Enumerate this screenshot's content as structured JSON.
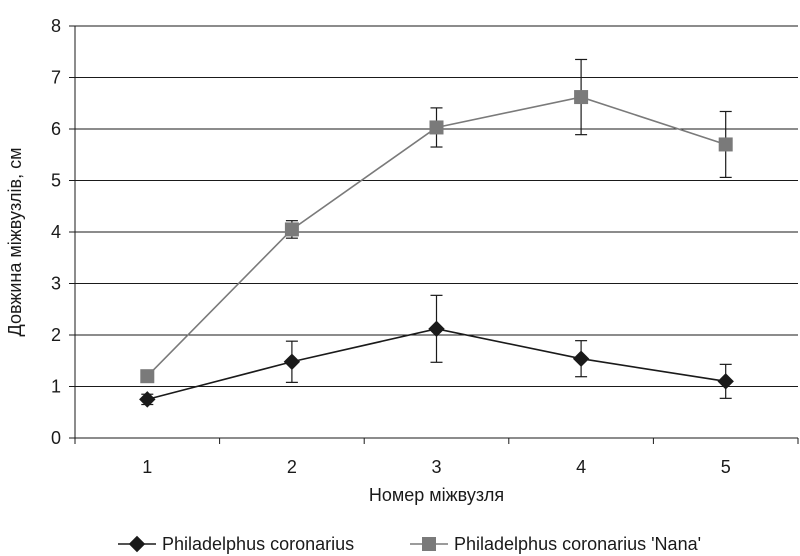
{
  "chart_data": {
    "type": "line",
    "title": "",
    "xlabel": "Номер міжвузля",
    "ylabel": "Довжина міжвузлів, см",
    "categories": [
      "1",
      "2",
      "3",
      "4",
      "5"
    ],
    "ylim": [
      0,
      8
    ],
    "yticks": [
      0,
      1,
      2,
      3,
      4,
      5,
      6,
      7,
      8
    ],
    "grid": "horizontal",
    "legend_position": "bottom",
    "series": [
      {
        "name": "Philadelphus coronarius",
        "marker": "diamond",
        "color": "#1a1a1a",
        "values": [
          0.75,
          1.48,
          2.12,
          1.54,
          1.1
        ],
        "error": [
          0.1,
          0.4,
          0.65,
          0.35,
          0.33
        ]
      },
      {
        "name": "Philadelphus coronarius 'Nana'",
        "marker": "square",
        "color": "#7a7a7a",
        "values": [
          1.2,
          4.05,
          6.03,
          6.62,
          5.7
        ],
        "error": [
          0.05,
          0.17,
          0.38,
          0.73,
          0.64
        ]
      }
    ]
  }
}
